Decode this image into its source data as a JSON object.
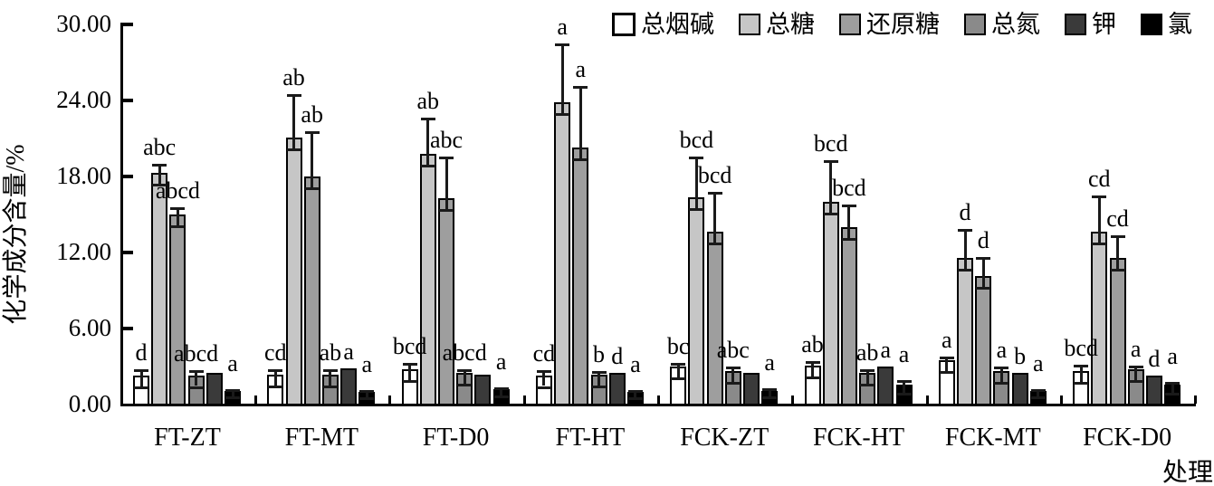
{
  "chart_data": {
    "type": "bar",
    "title": "",
    "ylabel": "化学成分含量/%",
    "xlabel": "处理",
    "ylim": [
      0,
      30
    ],
    "ytick_step": 6,
    "yticks": [
      0,
      6,
      12,
      18,
      24,
      30
    ],
    "ytick_labels": [
      "0.00",
      "6.00",
      "12.00",
      "18.00",
      "24.00",
      "30.00"
    ],
    "grid": false,
    "legend_position": "top-right",
    "categories": [
      "FT-ZT",
      "FT-MT",
      "FT-D0",
      "FT-HT",
      "FCK-ZT",
      "FCK-HT",
      "FCK-MT",
      "FCK-D0"
    ],
    "series": [
      {
        "name": "总烟碱",
        "color": "#ffffff",
        "values": [
          2.2,
          2.3,
          2.7,
          2.25,
          2.9,
          3.0,
          3.4,
          2.6
        ],
        "errors": [
          0.5,
          0.4,
          0.5,
          0.4,
          0.35,
          0.35,
          0.35,
          0.45
        ],
        "letters": [
          "d",
          "cd",
          "bcd",
          "cd",
          "bc",
          "ab",
          "a",
          "bcd"
        ]
      },
      {
        "name": "总糖",
        "color": "#c6c6c6",
        "values": [
          18.2,
          21.0,
          19.7,
          23.8,
          16.3,
          15.9,
          11.5,
          13.6
        ],
        "errors": [
          0.7,
          3.4,
          2.9,
          4.6,
          3.2,
          3.3,
          2.3,
          2.8
        ],
        "letters": [
          "abc",
          "ab",
          "ab",
          "a",
          "bcd",
          "bcd",
          "d",
          "cd"
        ]
      },
      {
        "name": "还原糖",
        "color": "#9e9e9e",
        "values": [
          14.9,
          17.9,
          16.2,
          20.2,
          13.6,
          13.9,
          10.1,
          11.5
        ],
        "errors": [
          0.6,
          3.6,
          3.3,
          4.9,
          3.1,
          1.8,
          1.5,
          1.8
        ],
        "letters": [
          "abcd",
          "ab",
          "abc",
          "a",
          "bcd",
          "bcd",
          "d",
          "cd"
        ]
      },
      {
        "name": "总氮",
        "color": "#8a8a8a",
        "values": [
          2.25,
          2.3,
          2.4,
          2.3,
          2.6,
          2.4,
          2.6,
          2.7
        ],
        "errors": [
          0.4,
          0.4,
          0.35,
          0.3,
          0.3,
          0.35,
          0.3,
          0.3
        ],
        "letters": [
          "abcd",
          "ab",
          "abcd",
          "b",
          "abc",
          "ab",
          "a",
          "a"
        ]
      },
      {
        "name": "钾",
        "color": "#3a3a3a",
        "values": [
          2.45,
          2.8,
          2.3,
          2.4,
          2.45,
          2.9,
          2.45,
          2.2
        ],
        "errors": [
          0,
          0,
          0,
          0,
          0,
          0,
          0,
          0
        ],
        "letters": [
          "",
          "a",
          "",
          "d",
          "",
          "a",
          "b",
          "d"
        ]
      },
      {
        "name": "氯",
        "color": "#000000",
        "values": [
          1.0,
          0.95,
          1.15,
          0.93,
          1.0,
          1.5,
          1.0,
          1.5
        ],
        "errors": [
          0.15,
          0.15,
          0.15,
          0.15,
          0.25,
          0.35,
          0.15,
          0.25
        ],
        "letters": [
          "a",
          "a",
          "a",
          "a",
          "a",
          "a",
          "a",
          "a"
        ]
      }
    ]
  }
}
